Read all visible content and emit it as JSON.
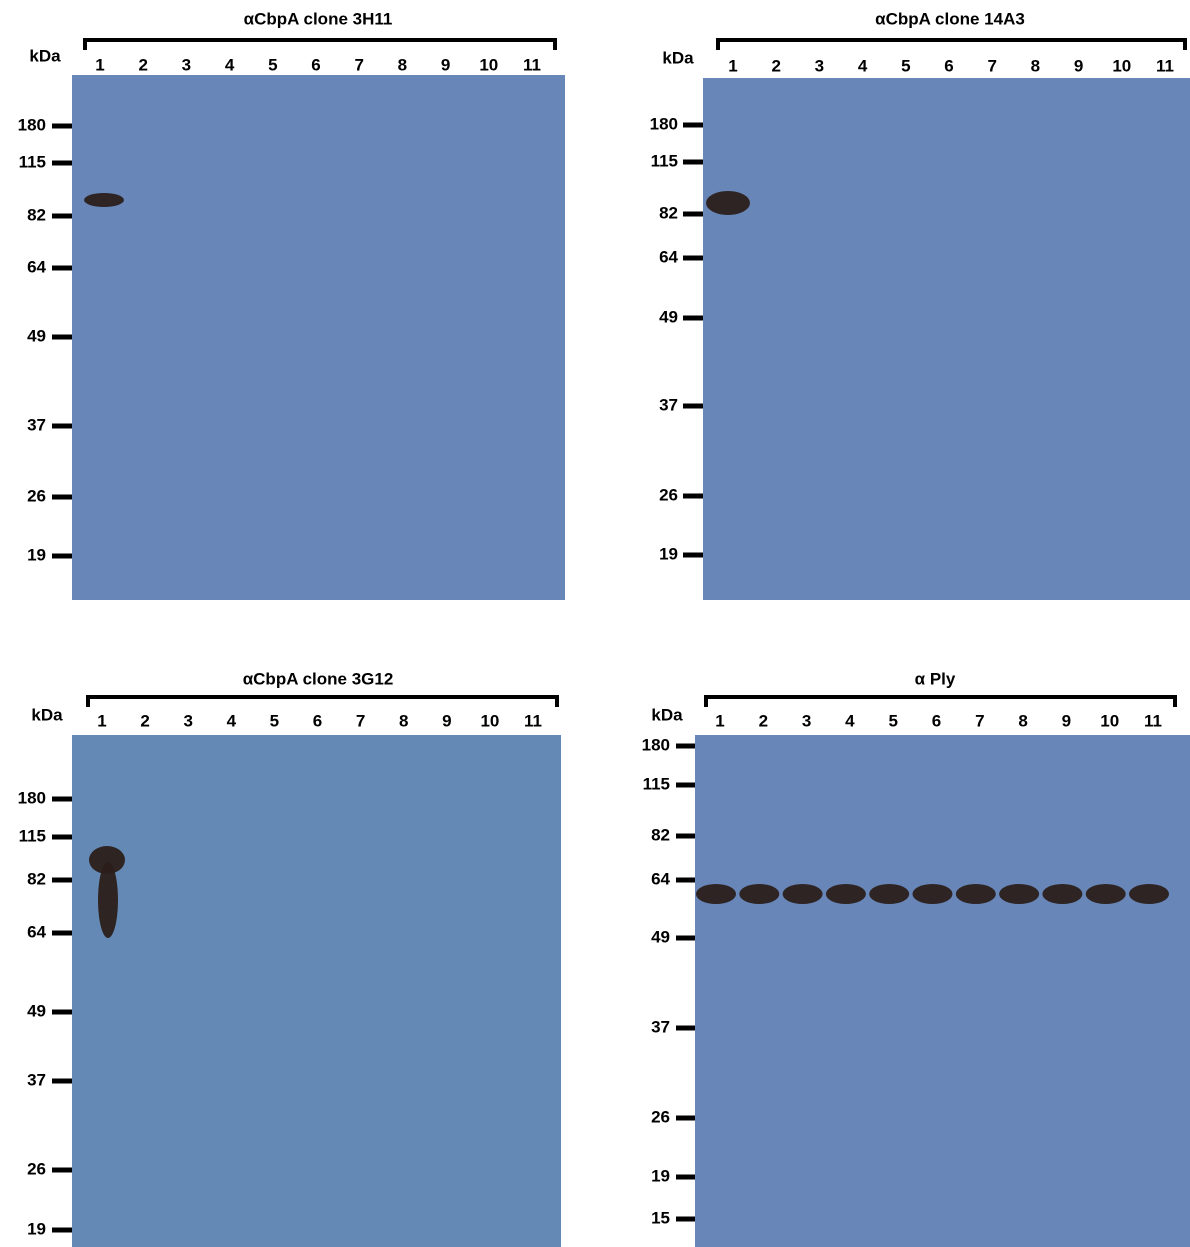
{
  "panels": [
    {
      "title": "αCbpA clone 3H11",
      "unit": "kDa",
      "lanes": [
        "1",
        "2",
        "3",
        "4",
        "5",
        "6",
        "7",
        "8",
        "9",
        "10",
        "11"
      ],
      "markers": [
        "180",
        "115",
        "82",
        "64",
        "49",
        "37",
        "26",
        "19"
      ]
    },
    {
      "title": "αCbpA clone 14A3",
      "unit": "kDa",
      "lanes": [
        "1",
        "2",
        "3",
        "4",
        "5",
        "6",
        "7",
        "8",
        "9",
        "10",
        "11"
      ],
      "markers": [
        "180",
        "115",
        "82",
        "64",
        "49",
        "37",
        "26",
        "19"
      ]
    },
    {
      "title": "αCbpA clone 3G12",
      "unit": "kDa",
      "lanes": [
        "1",
        "2",
        "3",
        "4",
        "5",
        "6",
        "7",
        "8",
        "9",
        "10",
        "11"
      ],
      "markers": [
        "180",
        "115",
        "82",
        "64",
        "49",
        "37",
        "26",
        "19"
      ]
    },
    {
      "title": "α Ply",
      "unit": "kDa",
      "lanes": [
        "1",
        "2",
        "3",
        "4",
        "5",
        "6",
        "7",
        "8",
        "9",
        "10",
        "11"
      ],
      "markers": [
        "180",
        "115",
        "82",
        "64",
        "49",
        "37",
        "26",
        "19",
        "15"
      ]
    }
  ]
}
